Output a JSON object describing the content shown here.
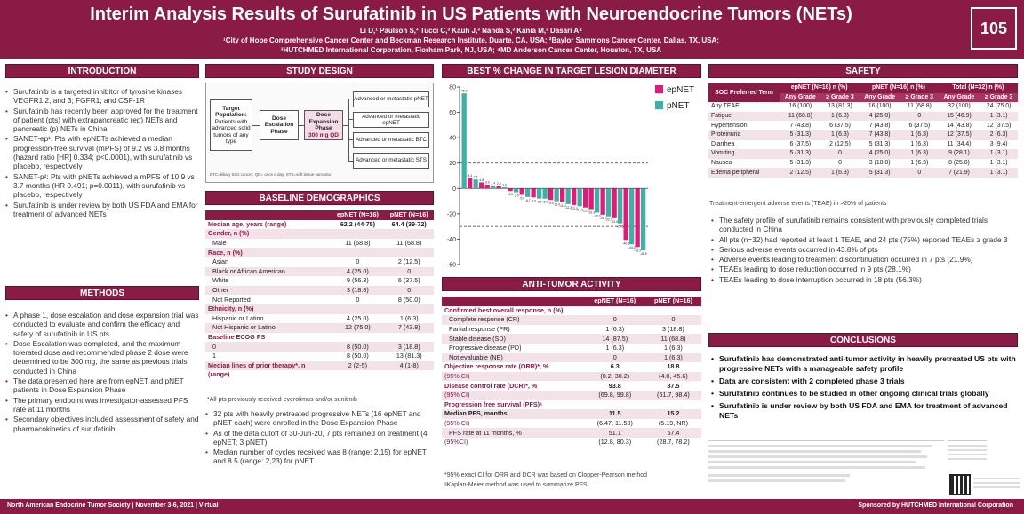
{
  "header": {
    "title": "Interim Analysis Results of Surufatinib in US Patients with Neuroendocrine Tumors (NETs)",
    "authors": "Li D,¹ Paulson S,² Tucci C,³ Kauh J,³ Nanda S,³ Kania M,³ Dasari A⁴",
    "affiliations_1": "¹City of Hope Comprehensive Cancer Center and Beckman Research Institute, Duarte, CA, USA; ²Baylor Sammons Cancer Center, Dallas, TX, USA;",
    "affiliations_2": "³HUTCHMED International Corporation, Florham Park, NJ, USA; ⁴MD Anderson Cancer Center, Houston, TX, USA",
    "poster_number": "105"
  },
  "introduction": {
    "heading": "INTRODUCTION",
    "bullets": [
      "Surufatinib is a targeted inhibitor of tyrosine kinases VEGFR1,2, and 3; FGFR1; and CSF-1R",
      "Surufatinib has recently been approved for the treatment of patient (pts) with extrapancreatic (ep) NETs and pancreatic (p) NETs in China",
      "SANET-ep¹: Pts with epNETs achieved a median progression-free survival (mPFS) of 9.2 vs 3.8 months (hazard ratio [HR] 0.334; p<0.0001), with surufatinib vs placebo, respectively",
      "SANET-p²: Pts with pNETs achieved a mPFS of 10.9 vs 3.7 months (HR 0.491; p=0.0011), with surufatinib vs placebo, respectively",
      "Surufatinib is under review by both US FDA and EMA for treatment of advanced NETs"
    ]
  },
  "methods": {
    "heading": "METHODS",
    "bullets": [
      "A phase 1, dose escalation and dose expansion trial was conducted to evaluate and confirm the efficacy and safety of surufatinib in US pts",
      "Dose Escalation was completed, and the maximum tolerated dose and recommended phase 2 dose were determined to be 300 mg, the same as previous trials conducted in China",
      "The data presented here are from epNET and pNET patients in Dose Expansion Phase",
      "The primary endpoint was investigator-assessed PFS rate at 11 months",
      "Secondary objectives included assessment of safety and pharmacokinetics of surufatinib"
    ]
  },
  "study_design": {
    "heading": "STUDY DESIGN",
    "target_title": "Target Population:",
    "target_text": "Patients with advanced solid tumors of any type",
    "escalation": "Dose Escalation Phase",
    "expansion": "Dose Expansion Phase",
    "dose": "300 mg QD",
    "arms": [
      "Advanced or metastatic pNET",
      "Advanced or metastatic epNET",
      "Advanced or metastatic BTC",
      "Advanced or metastatic STS"
    ],
    "footnote": "BTC=biliary tract cancer; QD= once a day; STS=soft tissue sarcoma"
  },
  "baseline": {
    "heading": "BASELINE DEMOGRAPHICS",
    "columns": [
      "",
      "epNET (N=16)",
      "pNET (N=16)"
    ],
    "rows": [
      {
        "type": "grp",
        "cells": [
          "Median age, years (range)",
          "62.2 (44-75)",
          "64.4 (39-72)"
        ]
      },
      {
        "type": "grp",
        "cells": [
          "Gender, n (%)",
          "",
          ""
        ]
      },
      {
        "type": "sub",
        "cells": [
          "Male",
          "11 (68.8)",
          "11 (68.8)"
        ]
      },
      {
        "type": "grp",
        "cells": [
          "Race, n (%)",
          "",
          ""
        ]
      },
      {
        "type": "sub",
        "cells": [
          "Asian",
          "0",
          "2 (12.5)"
        ]
      },
      {
        "type": "sub",
        "cells": [
          "Black or African American",
          "4 (25.0)",
          "0"
        ]
      },
      {
        "type": "sub",
        "cells": [
          "White",
          "9 (56.3)",
          "6 (37.5)"
        ]
      },
      {
        "type": "sub",
        "cells": [
          "Other",
          "3 (18.8)",
          "0"
        ]
      },
      {
        "type": "sub",
        "cells": [
          "Not Reported",
          "0",
          "8 (50.0)"
        ]
      },
      {
        "type": "grp",
        "cells": [
          "Ethnicity, n (%)",
          "",
          ""
        ]
      },
      {
        "type": "sub",
        "cells": [
          "Hispanic or Latino",
          "4 (25.0)",
          "1 (6.3)"
        ]
      },
      {
        "type": "sub",
        "cells": [
          "Not Hispanic or Latino",
          "12 (75.0)",
          "7 (43.8)"
        ]
      },
      {
        "type": "grp",
        "cells": [
          "Baseline ECOG PS",
          "",
          ""
        ]
      },
      {
        "type": "sub",
        "cells": [
          "0",
          "8 (50.0)",
          "3 (18.8)"
        ]
      },
      {
        "type": "sub",
        "cells": [
          "1",
          "8 (50.0)",
          "13 (81.3)"
        ]
      },
      {
        "type": "grp2",
        "cells": [
          "Median lines of prior therapy*, n",
          "2 (2-5)",
          "4 (1-8)"
        ]
      },
      {
        "type": "grp2b",
        "cells": [
          "(range)",
          "",
          ""
        ]
      }
    ],
    "footnote": "*All pts previously received everolimus and/or sunitinib",
    "bullets": [
      "32 pts with heavily pretreated progressive NETs (16 epNET and pNET each) were enrolled in the Dose Expansion Phase",
      "As of the data cutoff of 30-Jun-20, 7 pts remained on treatment (4 epNET; 3 pNET)",
      "Median number of cycles received was 8 (range: 2,15) for epNET and 8.5 (range: 2,23) for pNET"
    ]
  },
  "waterfall": {
    "heading": "BEST % CHANGE IN TARGET LESION DIAMETER"
  },
  "chart_data": {
    "type": "bar",
    "title": "BEST % CHANGE IN TARGET LESION DIAMETER",
    "xlabel": "",
    "ylabel": "",
    "ylim": [
      -60,
      80
    ],
    "yticks": [
      80,
      60,
      40,
      20,
      0,
      -20,
      -40,
      -60
    ],
    "reference_lines": [
      20,
      -30
    ],
    "series": [
      {
        "name": "epNET",
        "color": "#e6177a"
      },
      {
        "name": "pNET",
        "color": "#3ab3a7"
      }
    ],
    "values": [
      75.0,
      8.3,
      7.1,
      4.8,
      3.0,
      2.4,
      2.0,
      1.0,
      -2.0,
      -3.0,
      -5.0,
      -6.7,
      -7.0,
      -8.0,
      -8.0,
      -9.0,
      -10.0,
      -11.0,
      -12.3,
      -13.0,
      -14.0,
      -15.0,
      -16.3,
      -19.0,
      -20.7,
      -22.0,
      -23.5,
      -27.6,
      -40.6,
      -44.0,
      -46.2,
      -48.9
    ],
    "groups": [
      "pNET",
      "epNET",
      "pNET",
      "epNET",
      "epNET",
      "pNET",
      "epNET",
      "pNET",
      "epNET",
      "pNET",
      "epNET",
      "pNET",
      "epNET",
      "pNET",
      "pNET",
      "epNET",
      "pNET",
      "epNET",
      "pNET",
      "epNET",
      "pNET",
      "epNET",
      "epNET",
      "pNET",
      "epNET",
      "pNET",
      "epNET",
      "pNET",
      "epNET",
      "pNET",
      "epNET",
      "pNET"
    ],
    "legend": "top-right"
  },
  "antitumor": {
    "heading": "ANTI-TUMOR ACTIVITY",
    "columns": [
      "",
      "epNET (N=16)",
      "pNET (N=16)"
    ],
    "rows": [
      {
        "type": "grp",
        "cells": [
          "Confirmed best overall response, n (%)",
          "",
          ""
        ]
      },
      {
        "type": "sub",
        "cells": [
          "Complete response (CR)",
          "0",
          "0"
        ]
      },
      {
        "type": "sub",
        "cells": [
          "Partial response (PR)",
          "1 (6.3)",
          "3 (18.8)"
        ]
      },
      {
        "type": "sub",
        "cells": [
          "Stable disease (SD)",
          "14 (87.5)",
          "11 (68.8)"
        ]
      },
      {
        "type": "sub",
        "cells": [
          "Progressive disease (PD)",
          "1 (6.3)",
          "1 (6.3)"
        ]
      },
      {
        "type": "sub",
        "cells": [
          "Not evaluable (NE)",
          "0",
          "1 (6.3)"
        ]
      },
      {
        "type": "grp",
        "cells": [
          "Objective response rate (ORR)*, %",
          "6.3",
          "18.8"
        ]
      },
      {
        "type": "ci",
        "cells": [
          "(95% CI)",
          "(0.2, 30.2)",
          "(4.0, 45.6)"
        ]
      },
      {
        "type": "grp",
        "cells": [
          "Disease control rate (DCR)*, %",
          "93.8",
          "87.5"
        ]
      },
      {
        "type": "ci",
        "cells": [
          "(95% CI)",
          "(69.8, 99.8)",
          "(61.7, 98.4)"
        ]
      },
      {
        "type": "grp",
        "cells": [
          "Progression free survival (PFS)ᵃ",
          "",
          ""
        ]
      },
      {
        "type": "bold",
        "cells": [
          "Median PFS, months",
          "11.5",
          "15.2"
        ]
      },
      {
        "type": "ci",
        "cells": [
          "(95% CI)",
          "(6.47, 11.50)",
          "(5.19, NR)"
        ]
      },
      {
        "type": "plain",
        "cells": [
          "PFS rate at 11 months, %",
          "51.1",
          "57.4"
        ]
      },
      {
        "type": "ci",
        "cells": [
          "(95%CI)",
          "(12.8, 80.3)",
          "(28.7, 78.2)"
        ]
      }
    ],
    "footnotes": [
      "*95% exact CI for ORR and DCR was based on Clopper-Pearson method",
      "ᵃKaplan-Meier method was used to summarize PFS"
    ]
  },
  "safety": {
    "heading": "SAFETY",
    "group_headers": [
      "SOC Preferred Term",
      "epNET (N=16) n (%)",
      "pNET (N=16) n (%)",
      "Total (N=32) n (%)"
    ],
    "sub_headers": [
      "Any Grade",
      "≥ Grade 3",
      "Any Grade",
      "≥ Grade 3",
      "Any Grade",
      "≥ Grade 3"
    ],
    "rows": [
      [
        "Any TEAE",
        "16 (100)",
        "13 (81.3)",
        "16 (100)",
        "11 (68.8)",
        "32 (100)",
        "24 (75.0)"
      ],
      [
        "Fatigue",
        "11 (68.8)",
        "1 (6.3)",
        "4 (25.0)",
        "0",
        "15 (46.9)",
        "1 (3.1)"
      ],
      [
        "Hypertension",
        "7 (43.8)",
        "6 (37.5)",
        "7 (43.8)",
        "6 (37.5)",
        "14 (43.8)",
        "12 (37.5)"
      ],
      [
        "Proteinuria",
        "5 (31.3)",
        "1 (6.3)",
        "7 (43.8)",
        "1 (6.3)",
        "12 (37.5)",
        "2 (6.3)"
      ],
      [
        "Diarrhea",
        "6 (37.5)",
        "2 (12.5)",
        "5 (31.3)",
        "1 (6.3)",
        "11 (34.4)",
        "3 (9.4)"
      ],
      [
        "Vomiting",
        "5 (31.3)",
        "0",
        "4 (25.0)",
        "1 (6.3)",
        "9 (28.1)",
        "1 (3.1)"
      ],
      [
        "Nausea",
        "5 (31.3)",
        "0",
        "3 (18.8)",
        "1 (6.3)",
        "8 (25.0)",
        "1 (3.1)"
      ],
      [
        "Edema peripheral",
        "2 (12.5)",
        "1 (6.3)",
        "5 (31.3)",
        "0",
        "7 (21.9)",
        "1 (3.1)"
      ]
    ],
    "footnote": "Treatment-emergent adverse events (TEAE) in >20% of patients",
    "bullets": [
      "The safety profile of surufatinib remains consistent with previously completed trials conducted in China",
      "All pts (n=32) had reported at least 1 TEAE, and 24 pts (75%) reported TEAEs ≥ grade 3",
      "Serious adverse events occurred in 43.8% of pts",
      "Adverse events leading to treatment discontinuation occurred in 7 pts (21.9%)",
      "TEAEs leading to dose reduction occurred in 9 pts (28.1%)",
      "TEAEs leading to dose interruption occurred in 18 pts (56.3%)"
    ]
  },
  "conclusions": {
    "heading": "CONCLUSIONS",
    "bullets": [
      "Surufatinib has demonstrated anti-tumor activity in heavily pretreated US pts with progressive NETs with a manageable safety profile",
      "Data are consistent with 2 completed phase 3 trials",
      "Surufatinib continues to be studied in other ongoing clinical trials globally",
      "Surufatinib is under review by both US FDA and EMA for treatment of advanced NETs"
    ]
  },
  "footer": {
    "left": "North American Endocrine Tumor Society | November 3-6, 2021 | Virtual",
    "right": "Sponsored by HUTCHMED International Corporation"
  }
}
